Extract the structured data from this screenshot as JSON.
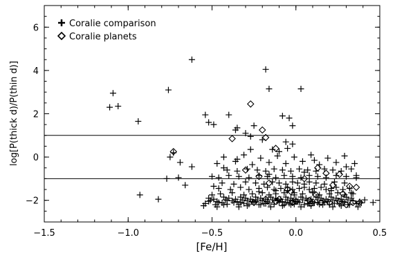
{
  "chart_data": {
    "type": "scatter",
    "title": "",
    "xlabel": "[Fe/H]",
    "ylabel": "log[P(thick d)/P(thin d)]",
    "xlim": [
      -1.5,
      0.5
    ],
    "ylim": [
      -3,
      7
    ],
    "xticks": [
      -1.5,
      -1.0,
      -0.5,
      0.0,
      0.5
    ],
    "xtick_labels": [
      "−1.5",
      "−1.0",
      "−0.5",
      "0.0",
      "0.5"
    ],
    "yticks": [
      -2,
      0,
      2,
      4,
      6
    ],
    "ytick_labels": [
      "−2",
      "0",
      "2",
      "4",
      "6"
    ],
    "grid": false,
    "legend_position": "top-left",
    "reference_lines": [
      1,
      -1
    ],
    "series": [
      {
        "name": "Coralie comparison",
        "marker": "plus",
        "x": [
          -1.09,
          -1.06,
          -1.11,
          -0.94,
          -0.76,
          -0.62,
          -0.73,
          -0.75,
          -0.69,
          -0.77,
          -0.93,
          -0.82,
          -0.66,
          -0.62,
          -0.18,
          -0.16,
          -0.08,
          0.03,
          -0.02,
          -0.04,
          -0.02,
          -0.06,
          -0.54,
          -0.52,
          -0.49,
          -0.4,
          -0.36,
          -0.35,
          -0.3,
          -0.27,
          -0.25,
          -0.2,
          -0.14,
          -0.1,
          -0.05,
          -0.52,
          -0.46,
          -0.41,
          -0.33,
          -0.24,
          -0.18,
          -0.11,
          -0.06,
          0.0,
          0.07,
          0.13,
          0.19,
          -0.55,
          -0.47,
          -0.43,
          -0.34,
          -0.29,
          -0.21,
          -0.15,
          -0.08,
          -0.03,
          0.03,
          0.09,
          0.16,
          0.22,
          0.27,
          0.31,
          0.37,
          -0.52,
          -0.49,
          -0.43,
          -0.4,
          -0.36,
          -0.33,
          -0.3,
          -0.27,
          -0.24,
          -0.21,
          -0.18,
          -0.15,
          -0.12,
          -0.09,
          -0.06,
          -0.03,
          0.0,
          0.03,
          0.06,
          0.09,
          0.12,
          0.15,
          0.18,
          0.21,
          0.24,
          0.27,
          0.3,
          0.33,
          -0.5,
          -0.45,
          -0.38,
          -0.31,
          -0.26,
          -0.2,
          -0.16,
          -0.12,
          -0.07,
          -0.01,
          0.04,
          0.1,
          0.14,
          0.2,
          0.25,
          0.29,
          0.34,
          -0.54,
          -0.48,
          -0.44,
          -0.41,
          -0.37,
          -0.34,
          -0.31,
          -0.28,
          -0.25,
          -0.22,
          -0.19,
          -0.16,
          -0.13,
          -0.1,
          -0.07,
          -0.04,
          -0.01,
          0.02,
          0.05,
          0.08,
          0.11,
          0.14,
          0.17,
          0.2,
          0.23,
          0.26,
          0.29,
          0.32,
          0.36,
          0.39,
          0.46,
          -0.51,
          -0.47,
          -0.42,
          -0.38,
          -0.35,
          -0.32,
          -0.29,
          -0.26,
          -0.23,
          -0.2,
          -0.17,
          -0.14,
          -0.11,
          -0.08,
          -0.05,
          -0.02,
          0.01,
          0.04,
          0.07,
          0.1,
          0.13,
          0.16,
          0.19,
          0.22,
          0.25,
          0.28,
          0.31,
          0.34,
          0.38,
          0.41,
          -0.46,
          -0.39,
          -0.33,
          -0.28,
          -0.22,
          -0.17,
          -0.13,
          -0.09,
          -0.05,
          -0.02,
          0.02,
          0.05,
          0.08,
          0.11,
          0.15,
          0.18,
          0.21,
          0.24,
          0.28,
          0.32,
          -0.44,
          -0.37,
          -0.3,
          -0.24,
          -0.19,
          -0.14,
          -0.1,
          -0.06,
          -0.02,
          0.01,
          0.05,
          0.08,
          0.12,
          0.17,
          0.23,
          0.29,
          -0.5,
          -0.46,
          -0.4,
          -0.34,
          -0.28,
          -0.22,
          -0.17,
          -0.12,
          -0.07,
          -0.02,
          0.03,
          0.08,
          0.13,
          0.18,
          0.24,
          0.3,
          0.36,
          -0.41,
          -0.35,
          -0.29,
          -0.23,
          -0.18,
          -0.13,
          -0.08,
          -0.03,
          0.02,
          0.07,
          0.12,
          0.17,
          0.22,
          0.27,
          0.33,
          -0.47,
          -0.36,
          -0.26,
          -0.16,
          -0.06,
          0.04,
          0.14,
          0.24,
          0.35,
          -0.43,
          -0.31,
          -0.21,
          -0.11,
          -0.01,
          0.09,
          0.19,
          0.29,
          -0.7,
          -0.49,
          -0.43,
          -0.35,
          -0.27,
          -0.16,
          -0.05,
          0.05,
          0.11,
          0.3,
          0.36,
          -0.22,
          -0.12,
          -0.01,
          0.1,
          0.21,
          0.33
        ],
        "y": [
          2.95,
          2.35,
          2.3,
          1.65,
          3.1,
          4.5,
          0.2,
          0.0,
          -0.25,
          -1.0,
          -1.75,
          -1.95,
          -1.3,
          -0.45,
          4.05,
          3.15,
          1.9,
          3.15,
          1.45,
          1.8,
          0.6,
          0.7,
          1.95,
          1.6,
          1.5,
          1.95,
          1.25,
          1.35,
          1.1,
          0.95,
          1.45,
          0.8,
          0.35,
          0.25,
          0.4,
          -2.05,
          -2.1,
          -2.0,
          -2.1,
          -2.05,
          -2.15,
          -2.0,
          -2.1,
          -2.05,
          -2.15,
          -2.1,
          -2.05,
          -2.25,
          -2.3,
          -2.2,
          -2.3,
          -2.25,
          -2.2,
          -2.3,
          -2.25,
          -2.2,
          -2.3,
          -2.25,
          -2.2,
          -2.3,
          -2.25,
          -2.2,
          -2.3,
          -1.9,
          -1.95,
          -1.85,
          -1.9,
          -1.95,
          -1.85,
          -1.9,
          -1.95,
          -1.85,
          -1.9,
          -1.95,
          -1.85,
          -1.9,
          -1.95,
          -1.85,
          -1.9,
          -1.95,
          -1.85,
          -1.9,
          -1.95,
          -1.85,
          -1.9,
          -1.95,
          -1.85,
          -1.9,
          -1.95,
          -1.85,
          -1.9,
          -1.75,
          -1.7,
          -1.65,
          -1.75,
          -1.7,
          -1.65,
          -1.75,
          -1.7,
          -1.65,
          -1.75,
          -1.7,
          -1.65,
          -1.75,
          -1.7,
          -1.65,
          -1.75,
          -1.7,
          -2.15,
          -2.2,
          -2.12,
          -2.18,
          -2.1,
          -2.2,
          -2.14,
          -2.18,
          -2.1,
          -2.2,
          -2.15,
          -2.12,
          -2.18,
          -2.1,
          -2.2,
          -2.14,
          -2.18,
          -2.1,
          -2.2,
          -2.15,
          -2.12,
          -2.18,
          -2.1,
          -2.2,
          -2.14,
          -2.18,
          -2.1,
          -2.2,
          -2.15,
          -2.12,
          -2.1,
          -2.0,
          -2.05,
          -1.98,
          -2.02,
          -2.06,
          -1.98,
          -2.02,
          -2.06,
          -1.98,
          -2.02,
          -2.06,
          -1.98,
          -2.02,
          -2.06,
          -1.98,
          -2.02,
          -2.06,
          -1.98,
          -2.02,
          -2.06,
          -1.98,
          -2.02,
          -2.06,
          -1.98,
          -2.02,
          -2.06,
          -1.98,
          -2.02,
          -2.06,
          -1.98,
          -1.45,
          -1.5,
          -1.4,
          -1.5,
          -1.45,
          -1.4,
          -1.5,
          -1.45,
          -1.4,
          -1.5,
          -1.45,
          -1.4,
          -1.5,
          -1.45,
          -1.4,
          -1.5,
          -1.45,
          -1.4,
          -1.5,
          -1.45,
          -1.2,
          -1.25,
          -1.15,
          -1.2,
          -1.25,
          -1.15,
          -1.2,
          -1.25,
          -1.15,
          -1.2,
          -1.25,
          -1.15,
          -1.2,
          -1.25,
          -1.15,
          -1.2,
          -0.9,
          -0.95,
          -0.85,
          -0.9,
          -0.95,
          -0.85,
          -0.9,
          -0.95,
          -0.85,
          -0.9,
          -0.95,
          -0.85,
          -0.9,
          -0.95,
          -0.85,
          -0.9,
          -0.95,
          -0.6,
          -0.65,
          -0.55,
          -0.6,
          -0.65,
          -0.55,
          -0.6,
          -0.65,
          -0.55,
          -0.6,
          -0.65,
          -0.55,
          -0.6,
          -0.65,
          -0.55,
          -0.3,
          -0.2,
          -0.35,
          -0.25,
          -0.3,
          -0.2,
          -0.35,
          -0.25,
          -0.3,
          0.0,
          0.1,
          -0.05,
          0.05,
          0.0,
          0.1,
          -0.05,
          0.05,
          -0.95,
          -1.35,
          -0.5,
          -0.1,
          0.35,
          -0.8,
          -1.55,
          -0.7,
          -0.15,
          -0.45,
          -0.85,
          -1.6,
          -1.55,
          -1.65,
          -1.6,
          -1.55,
          -1.65
        ]
      },
      {
        "name": "Coralie planets",
        "marker": "diamond",
        "x": [
          -0.27,
          -0.38,
          -0.73,
          -0.2,
          -0.18,
          -0.12,
          -0.3,
          -0.22,
          -0.16,
          -0.05,
          0.05,
          0.13,
          0.18,
          0.22,
          0.28,
          0.32,
          0.36,
          -0.18,
          -0.1,
          0.0,
          0.08,
          0.15,
          0.26,
          0.34,
          -0.25,
          -0.12,
          -0.02,
          0.09,
          0.2,
          0.3,
          0.38,
          -0.03,
          0.12,
          0.26
        ],
        "y": [
          2.45,
          0.85,
          0.25,
          1.25,
          0.9,
          0.4,
          -0.6,
          -0.9,
          -1.2,
          -1.5,
          -1.0,
          -0.5,
          -0.75,
          -1.3,
          -1.7,
          -1.35,
          -1.4,
          -1.95,
          -1.95,
          -2.05,
          -2.0,
          -2.1,
          -2.05,
          -2.1,
          -2.1,
          -2.05,
          -2.1,
          -2.15,
          -2.1,
          -2.2,
          -2.1,
          -1.6,
          -1.75,
          -0.8
        ]
      }
    ]
  }
}
